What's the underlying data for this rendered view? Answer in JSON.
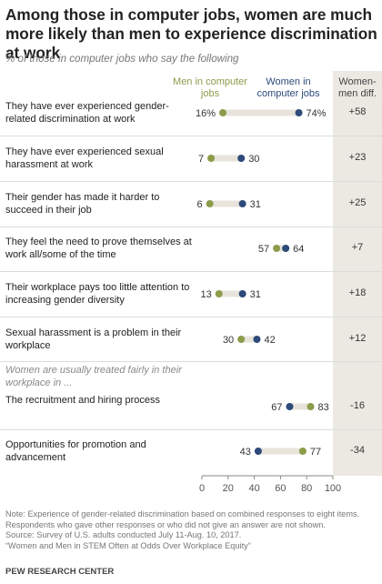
{
  "title": "Among those in computer jobs, women are much more likely than men to experience discrimination at work",
  "subtitle": "% of those in computer jobs who say the following",
  "legend": {
    "men": "Men in computer jobs",
    "women": "Women in computer jobs"
  },
  "diff_header": "Women-men diff.",
  "colors": {
    "men": "#8b9c4a",
    "women": "#2d4a7a",
    "bar": "#e8e4dc",
    "diff_bg": "#ece9e3"
  },
  "chart_data": {
    "type": "dot",
    "title": "Among those in computer jobs, women are much more likely than men to experience discrimination at work",
    "subtitle": "% of those in computer jobs who say the following",
    "xlim": [
      0,
      100
    ],
    "xticks": [
      "0",
      "20",
      "40",
      "60",
      "80",
      "100"
    ],
    "series": [
      {
        "name": "Men in computer jobs",
        "color": "#8b9c4a"
      },
      {
        "name": "Women in computer jobs",
        "color": "#2d4a7a"
      }
    ],
    "group_note": "Women are usually treated fairly in their workplace in ...",
    "rows": [
      {
        "label": "They have ever experienced gender-related discrimination at work",
        "men": 16,
        "women": 74,
        "men_label": "16%",
        "women_label": "74%",
        "diff": "+58"
      },
      {
        "label": "They have ever experienced sexual harassment at work",
        "men": 7,
        "women": 30,
        "men_label": "7",
        "women_label": "30",
        "diff": "+23"
      },
      {
        "label": "Their gender has made it harder to succeed in their job",
        "men": 6,
        "women": 31,
        "men_label": "6",
        "women_label": "31",
        "diff": "+25"
      },
      {
        "label": "They feel the need to prove themselves at work all/some of the time",
        "men": 57,
        "women": 64,
        "men_label": "57",
        "women_label": "64",
        "diff": "+7"
      },
      {
        "label": "Their workplace pays too little attention to increasing gender diversity",
        "men": 13,
        "women": 31,
        "men_label": "13",
        "women_label": "31",
        "diff": "+18"
      },
      {
        "label": "Sexual harassment is a problem in their workplace",
        "men": 30,
        "women": 42,
        "men_label": "30",
        "women_label": "42",
        "diff": "+12"
      },
      {
        "label": "The recruitment and hiring process",
        "men": 83,
        "women": 67,
        "men_label": "83",
        "women_label": "67",
        "diff": "-16"
      },
      {
        "label": "Opportunities for promotion and advancement",
        "men": 77,
        "women": 43,
        "men_label": "77",
        "women_label": "43",
        "diff": "-34"
      }
    ]
  },
  "footnotes": [
    "Note: Experience of gender-related discrimination based on combined responses to eight items. Respondents who gave other responses or who did not give an answer are not shown.",
    "Source: Survey of U.S. adults conducted July 11-Aug. 10, 2017.",
    "“Women and Men in STEM Often at Odds Over Workplace Equity”"
  ],
  "credit": "PEW RESEARCH CENTER"
}
